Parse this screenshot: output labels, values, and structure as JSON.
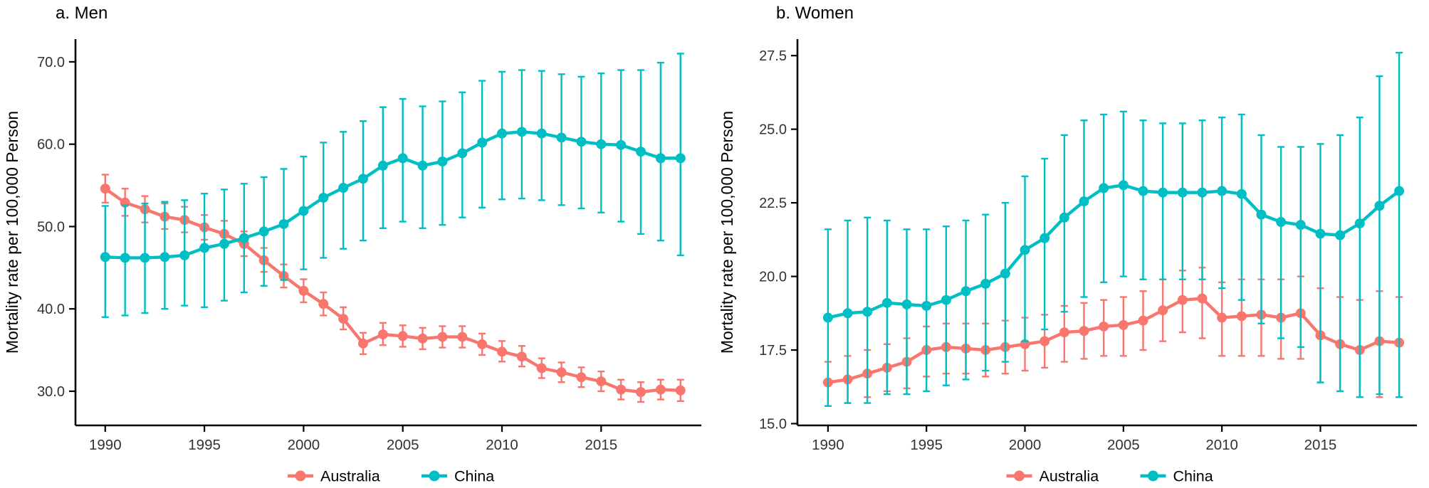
{
  "chart_data": [
    {
      "type": "line",
      "title": "a. Men",
      "ylabel": "Mortality rate per 100,000 Person",
      "legend_position": "bottom-center",
      "grid": false,
      "error_bars": true,
      "x": [
        1990,
        1991,
        1992,
        1993,
        1994,
        1995,
        1996,
        1997,
        1998,
        1999,
        2000,
        2001,
        2002,
        2003,
        2004,
        2005,
        2006,
        2007,
        2008,
        2009,
        2010,
        2011,
        2012,
        2013,
        2014,
        2015,
        2016,
        2017,
        2018,
        2019
      ],
      "xticks": [
        1990,
        1995,
        2000,
        2005,
        2010,
        2015
      ],
      "ylim": [
        25.85,
        72.76
      ],
      "yticks": [
        30,
        40,
        50,
        60,
        70
      ],
      "ytick_labels": [
        "30.0",
        "40.0",
        "50.0",
        "60.0",
        "70.0"
      ],
      "series": [
        {
          "name": "Australia",
          "color": "#F8766D",
          "values": [
            54.6,
            52.9,
            52.1,
            51.2,
            50.8,
            49.9,
            49.1,
            47.9,
            45.9,
            44.0,
            42.2,
            40.6,
            38.8,
            35.8,
            36.9,
            36.7,
            36.4,
            36.6,
            36.6,
            35.7,
            34.8,
            34.2,
            32.8,
            32.3,
            31.7,
            31.2,
            30.2,
            29.9,
            30.2,
            30.1
          ],
          "lo": [
            52.9,
            51.3,
            50.5,
            49.7,
            49.3,
            48.4,
            47.6,
            46.4,
            44.5,
            42.6,
            40.8,
            39.2,
            37.5,
            34.5,
            35.6,
            35.4,
            35.1,
            35.3,
            35.3,
            34.4,
            33.6,
            33.0,
            31.6,
            31.1,
            30.5,
            30.0,
            29.0,
            28.7,
            29.0,
            28.8
          ],
          "hi": [
            56.3,
            54.6,
            53.7,
            52.8,
            52.4,
            51.4,
            50.7,
            49.4,
            47.4,
            45.4,
            43.6,
            42.0,
            40.2,
            37.1,
            38.3,
            38.0,
            37.7,
            37.9,
            37.9,
            37.0,
            36.1,
            35.5,
            34.0,
            33.5,
            32.9,
            32.4,
            31.4,
            31.1,
            31.4,
            31.4
          ]
        },
        {
          "name": "China",
          "color": "#00BFC4",
          "values": [
            46.3,
            46.2,
            46.2,
            46.3,
            46.5,
            47.4,
            47.9,
            48.6,
            49.4,
            50.3,
            51.9,
            53.5,
            54.7,
            55.8,
            57.4,
            58.3,
            57.4,
            57.9,
            58.9,
            60.2,
            61.3,
            61.5,
            61.3,
            60.8,
            60.3,
            60.0,
            59.9,
            59.1,
            58.3,
            58.3
          ],
          "lo": [
            39.0,
            39.2,
            39.5,
            40.0,
            40.4,
            40.2,
            41.0,
            42.0,
            42.8,
            43.5,
            44.8,
            46.2,
            47.3,
            48.3,
            49.8,
            50.6,
            49.8,
            50.2,
            51.1,
            52.3,
            53.3,
            53.4,
            53.2,
            52.6,
            52.2,
            51.7,
            50.6,
            49.1,
            48.3,
            46.5
          ],
          "hi": [
            52.5,
            52.6,
            52.8,
            53.0,
            53.2,
            54.0,
            54.5,
            55.2,
            56.0,
            57.0,
            58.5,
            60.2,
            61.5,
            62.8,
            64.5,
            65.5,
            64.6,
            65.2,
            66.3,
            67.7,
            68.8,
            69.0,
            68.9,
            68.5,
            68.2,
            68.6,
            69.0,
            69.0,
            69.9,
            71.0
          ]
        }
      ]
    },
    {
      "type": "line",
      "title": "b. Women",
      "ylabel": "Mortality rate per 100,000 Person",
      "legend_position": "bottom-center",
      "grid": false,
      "error_bars": true,
      "x": [
        1990,
        1991,
        1992,
        1993,
        1994,
        1995,
        1996,
        1997,
        1998,
        1999,
        2000,
        2001,
        2002,
        2003,
        2004,
        2005,
        2006,
        2007,
        2008,
        2009,
        2010,
        2011,
        2012,
        2013,
        2014,
        2015,
        2016,
        2017,
        2018,
        2019
      ],
      "xticks": [
        1990,
        1995,
        2000,
        2005,
        2010,
        2015
      ],
      "ylim": [
        14.94,
        28.06
      ],
      "yticks": [
        15.0,
        17.5,
        20.0,
        22.5,
        25.0,
        27.5
      ],
      "ytick_labels": [
        "15.0",
        "17.5",
        "20.0",
        "22.5",
        "25.0",
        "27.5"
      ],
      "series": [
        {
          "name": "Australia",
          "color": "#F8766D",
          "values": [
            16.4,
            16.5,
            16.7,
            16.9,
            17.1,
            17.5,
            17.6,
            17.55,
            17.5,
            17.6,
            17.7,
            17.8,
            18.1,
            18.15,
            18.3,
            18.35,
            18.5,
            18.85,
            19.2,
            19.25,
            18.6,
            18.65,
            18.7,
            18.6,
            18.75,
            18.0,
            17.7,
            17.5,
            17.8,
            17.75
          ],
          "lo": [
            15.6,
            15.7,
            15.9,
            16.1,
            16.2,
            16.6,
            16.7,
            16.7,
            16.6,
            16.7,
            16.8,
            16.9,
            17.1,
            17.2,
            17.3,
            17.3,
            17.5,
            17.8,
            18.1,
            17.9,
            17.3,
            17.3,
            17.3,
            17.2,
            17.2,
            16.4,
            16.1,
            15.9,
            15.9,
            15.9
          ],
          "hi": [
            17.1,
            17.3,
            17.5,
            17.7,
            17.9,
            18.3,
            18.4,
            18.4,
            18.4,
            18.5,
            18.6,
            18.7,
            19.0,
            19.1,
            19.2,
            19.3,
            19.5,
            19.9,
            20.2,
            20.3,
            19.8,
            19.9,
            19.9,
            19.9,
            20.0,
            19.6,
            19.3,
            19.2,
            19.5,
            19.3
          ]
        },
        {
          "name": "China",
          "color": "#00BFC4",
          "values": [
            18.6,
            18.75,
            18.8,
            19.1,
            19.05,
            19.0,
            19.2,
            19.5,
            19.75,
            20.1,
            20.9,
            21.3,
            22.0,
            22.55,
            23.0,
            23.1,
            22.9,
            22.85,
            22.85,
            22.85,
            22.9,
            22.8,
            22.1,
            21.85,
            21.75,
            21.45,
            21.4,
            21.8,
            22.4,
            22.9
          ],
          "lo": [
            15.6,
            15.7,
            15.7,
            16.0,
            16.0,
            16.1,
            16.3,
            16.5,
            16.8,
            17.1,
            17.8,
            18.2,
            18.8,
            19.3,
            19.8,
            20.0,
            19.9,
            19.9,
            19.9,
            19.9,
            19.6,
            19.2,
            18.4,
            17.9,
            17.6,
            16.4,
            16.1,
            15.9,
            16.0,
            15.9
          ],
          "hi": [
            21.6,
            21.9,
            22.0,
            21.9,
            21.6,
            21.6,
            21.7,
            21.9,
            22.1,
            22.5,
            23.4,
            24.0,
            24.8,
            25.3,
            25.5,
            25.6,
            25.3,
            25.2,
            25.2,
            25.3,
            25.4,
            25.5,
            24.8,
            24.4,
            24.4,
            24.5,
            24.8,
            25.4,
            26.8,
            27.6
          ]
        }
      ]
    }
  ]
}
